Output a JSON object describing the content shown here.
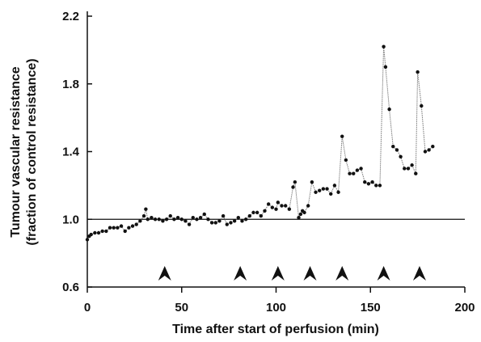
{
  "chart_data": {
    "type": "line",
    "x_label": "Time after start of perfusion (min)",
    "y_label": [
      "Tumour vascular resistance",
      "(fraction of control resistance)"
    ],
    "x": [
      0,
      1,
      2,
      4,
      6,
      8,
      10,
      12,
      14,
      16,
      18,
      20,
      22,
      24,
      26,
      28,
      30,
      31,
      32,
      34,
      36,
      38,
      40,
      42,
      44,
      46,
      48,
      50,
      52,
      54,
      56,
      58,
      60,
      62,
      64,
      66,
      68,
      70,
      72,
      74,
      76,
      78,
      80,
      82,
      84,
      86,
      88,
      90,
      92,
      94,
      96,
      98,
      100,
      101,
      103,
      105,
      107,
      109,
      110,
      112,
      113,
      114,
      115,
      117,
      119,
      121,
      123,
      125,
      127,
      129,
      131,
      133,
      135,
      137,
      139,
      141,
      143,
      145,
      147,
      149,
      151,
      153,
      155,
      157,
      158,
      160,
      162,
      164,
      166,
      168,
      170,
      172,
      174,
      175,
      177,
      179,
      181,
      183
    ],
    "series": [
      {
        "color": "#111111",
        "values": [
          0.88,
          0.9,
          0.91,
          0.92,
          0.92,
          0.93,
          0.93,
          0.95,
          0.95,
          0.95,
          0.96,
          0.93,
          0.95,
          0.96,
          0.97,
          0.99,
          1.02,
          1.06,
          1.0,
          1.01,
          1.0,
          1.0,
          0.99,
          1.0,
          1.02,
          1.0,
          1.01,
          1.0,
          0.99,
          0.97,
          1.01,
          1.0,
          1.01,
          1.03,
          1.0,
          0.98,
          0.98,
          0.99,
          1.02,
          0.97,
          0.98,
          0.99,
          1.01,
          0.99,
          1.0,
          1.02,
          1.04,
          1.04,
          1.02,
          1.05,
          1.09,
          1.07,
          1.06,
          1.1,
          1.08,
          1.08,
          1.06,
          1.19,
          1.22,
          1.01,
          1.03,
          1.05,
          1.04,
          1.08,
          1.22,
          1.16,
          1.17,
          1.18,
          1.18,
          1.15,
          1.2,
          1.16,
          1.49,
          1.35,
          1.27,
          1.27,
          1.29,
          1.3,
          1.22,
          1.21,
          1.22,
          1.2,
          1.2,
          2.02,
          1.9,
          1.65,
          1.43,
          1.41,
          1.37,
          1.3,
          1.3,
          1.32,
          1.27,
          1.87,
          1.67,
          1.4,
          1.41,
          1.43
        ]
      }
    ],
    "xlim": [
      0,
      200
    ],
    "xticks": [
      0,
      50,
      100,
      150,
      200
    ],
    "ylim": [
      0.6,
      2.2
    ],
    "yticks": [
      {
        "value": 0.6,
        "label": "0.6"
      },
      {
        "value": 1,
        "label": "1.0"
      },
      1.4,
      1.8,
      2.2
    ],
    "reference_line_y": 1,
    "arrows_x": [
      41,
      81,
      101,
      118,
      135,
      157,
      176
    ]
  }
}
